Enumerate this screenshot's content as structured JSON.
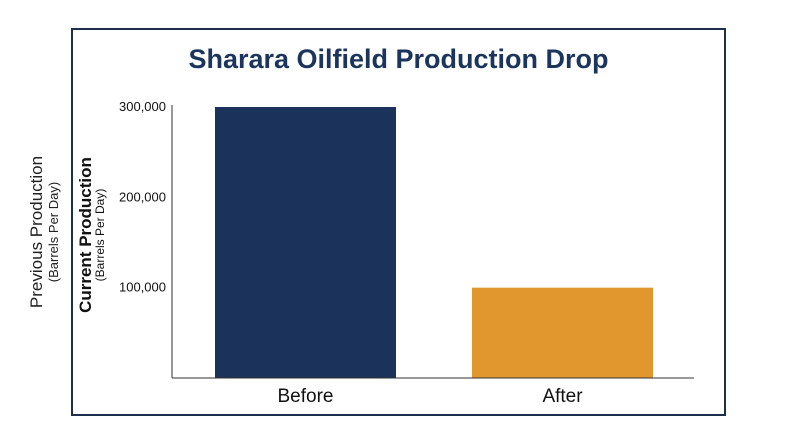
{
  "outer_axis": {
    "label": "Previous Production",
    "sublabel": "(Barrels Per Day)"
  },
  "chart_data": {
    "type": "bar",
    "title": "Sharara Oilfield Production Drop",
    "categories": [
      "Before",
      "After"
    ],
    "values": [
      300000,
      100000
    ],
    "ylabel": "Current Production",
    "ylabel_sub": "(Barrels Per Day)",
    "yticks": [
      100000,
      200000,
      300000
    ],
    "ytick_labels": [
      "100,000",
      "200,000",
      "300,000"
    ],
    "ylim": [
      0,
      300000
    ],
    "grid": false,
    "colors": [
      "#1b325a",
      "#e1972e"
    ]
  }
}
